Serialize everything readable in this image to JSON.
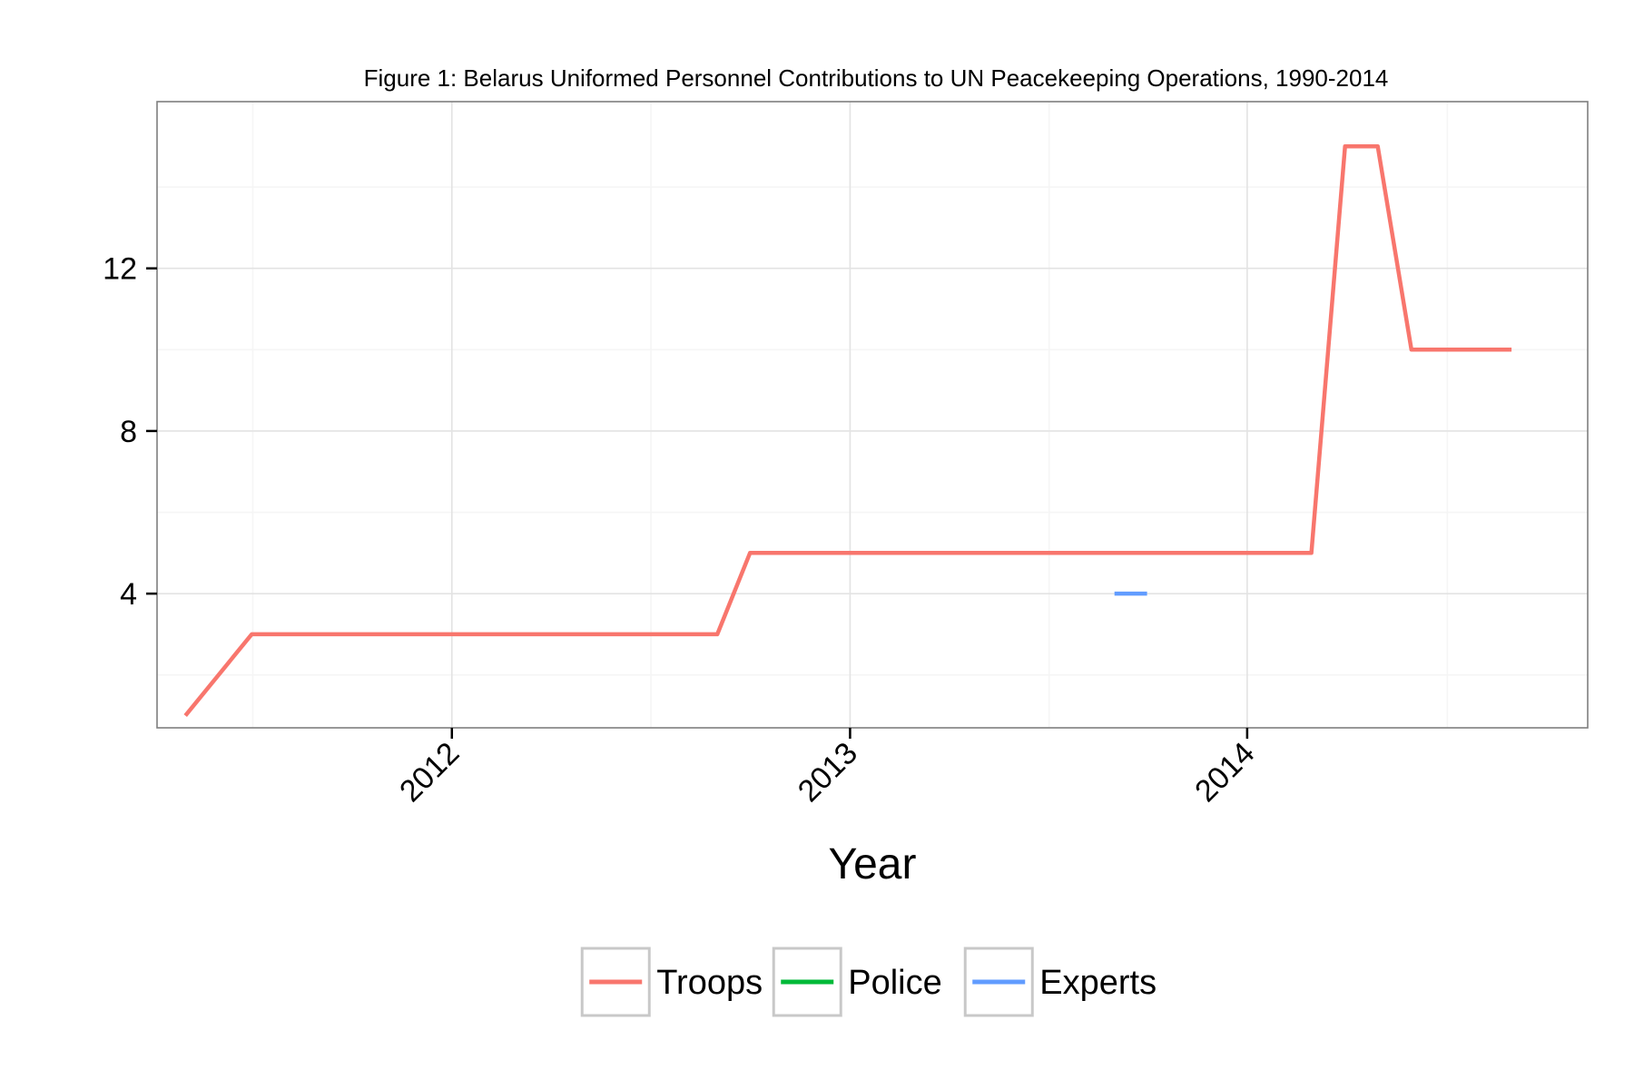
{
  "chart_data": {
    "type": "line",
    "title": "Figure 1: Belarus Uniformed Personnel Contributions to UN Peacekeeping Operations, 1990-2014",
    "xlabel": "Year",
    "ylabel": "",
    "x_ticks": [
      {
        "value": "2012-01-01",
        "label": "2012"
      },
      {
        "value": "2013-01-01",
        "label": "2013"
      },
      {
        "value": "2014-01-01",
        "label": "2014"
      }
    ],
    "y_ticks": [
      {
        "value": 4,
        "label": "4"
      },
      {
        "value": 8,
        "label": "8"
      },
      {
        "value": 12,
        "label": "12"
      }
    ],
    "xlim": [
      "2011-04-05",
      "2014-11-10"
    ],
    "ylim": [
      0.7,
      16.1
    ],
    "grid": true,
    "legend_position": "bottom",
    "series": [
      {
        "name": "Troops",
        "color": "#F8766D",
        "points": [
          {
            "x": "2011-05-01",
            "y": 1
          },
          {
            "x": "2011-07-01",
            "y": 3
          },
          {
            "x": "2012-09-01",
            "y": 3
          },
          {
            "x": "2012-10-01",
            "y": 5
          },
          {
            "x": "2014-03-01",
            "y": 5
          },
          {
            "x": "2014-04-01",
            "y": 15
          },
          {
            "x": "2014-05-01",
            "y": 15
          },
          {
            "x": "2014-06-01",
            "y": 10
          },
          {
            "x": "2014-09-01",
            "y": 10
          }
        ]
      },
      {
        "name": "Police",
        "color": "#00BA38",
        "points": []
      },
      {
        "name": "Experts",
        "color": "#619CFF",
        "points": [
          {
            "x": "2013-09-01",
            "y": 4
          },
          {
            "x": "2013-10-01",
            "y": 4
          }
        ]
      }
    ]
  }
}
